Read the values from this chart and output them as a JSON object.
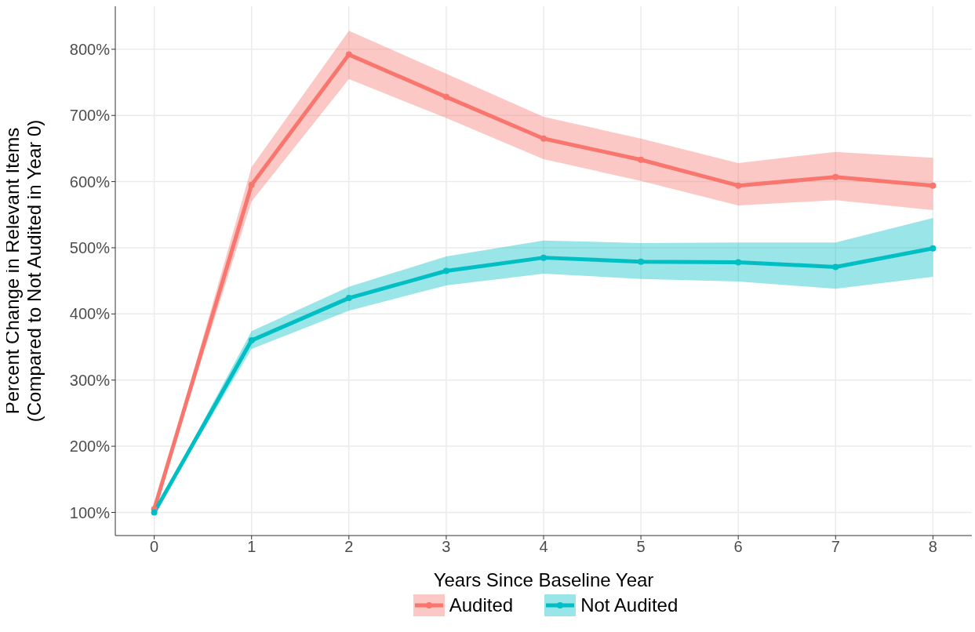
{
  "chart_data": {
    "type": "line",
    "xlabel": "Years Since Baseline Year",
    "ylabel": "Percent Change in Relevant Items\n(Compared to Not Audited in Year 0)",
    "x": [
      0,
      1,
      2,
      3,
      4,
      5,
      6,
      7,
      8
    ],
    "series": [
      {
        "name": "Audited",
        "color": "#f8766d",
        "values": [
          105,
          595,
          792,
          728,
          665,
          633,
          594,
          607,
          594
        ],
        "lower": [
          105,
          570,
          755,
          696,
          634,
          601,
          564,
          572,
          557
        ],
        "upper": [
          105,
          622,
          828,
          763,
          698,
          665,
          628,
          645,
          636
        ]
      },
      {
        "name": "Not Audited",
        "color": "#00bfc4",
        "values": [
          100,
          360,
          424,
          465,
          485,
          479,
          478,
          471,
          499
        ],
        "lower": [
          100,
          347,
          405,
          443,
          461,
          453,
          449,
          438,
          456
        ],
        "upper": [
          100,
          374,
          441,
          487,
          511,
          507,
          508,
          508,
          545
        ]
      }
    ],
    "xlim": [
      -0.4,
      8.4
    ],
    "xticks": [
      0,
      1,
      2,
      3,
      4,
      5,
      6,
      7,
      8
    ],
    "ylim": [
      65,
      865
    ],
    "yticks": [
      {
        "value": 100,
        "label": "100%"
      },
      {
        "value": 200,
        "label": "200%"
      },
      {
        "value": 300,
        "label": "300%"
      },
      {
        "value": 400,
        "label": "400%"
      },
      {
        "value": 500,
        "label": "500%"
      },
      {
        "value": 600,
        "label": "600%"
      },
      {
        "value": 700,
        "label": "700%"
      },
      {
        "value": 800,
        "label": "800%"
      }
    ],
    "grid": true,
    "legend": "bottom",
    "marker": "circle",
    "line_style": "solid"
  }
}
